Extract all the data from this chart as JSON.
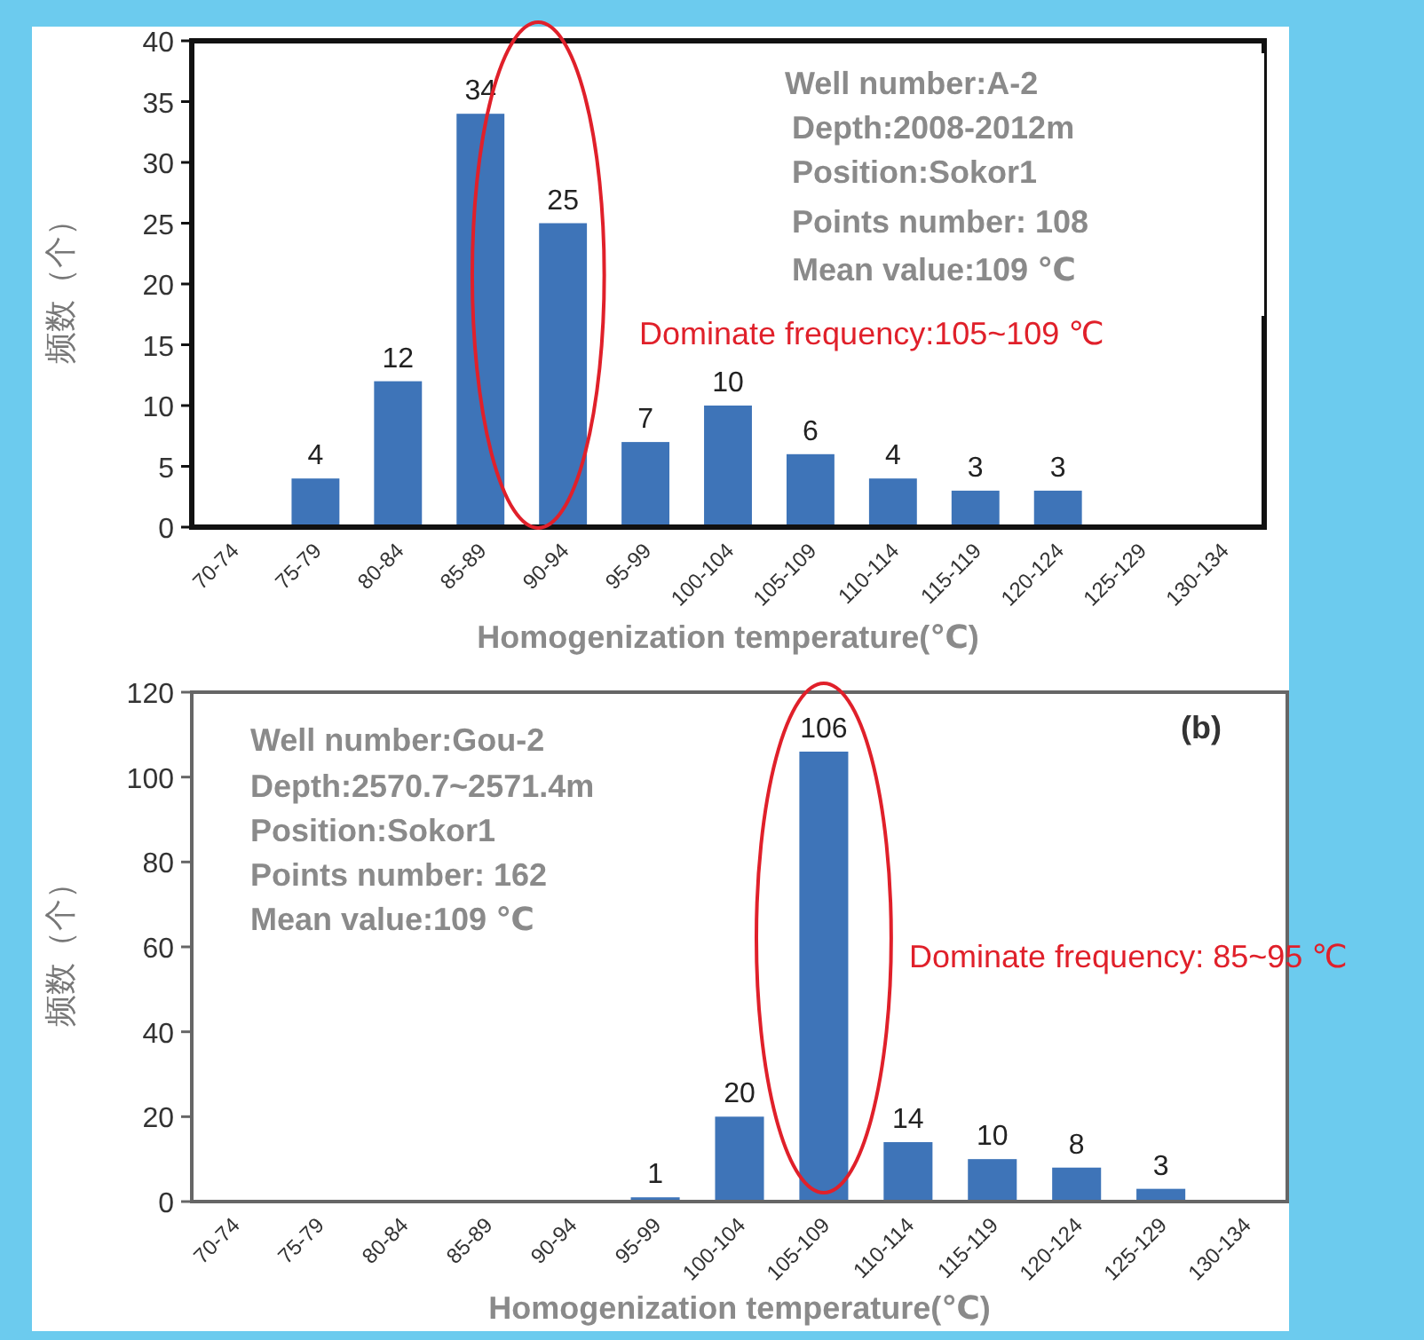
{
  "chart_data": [
    {
      "type": "bar",
      "categories": [
        "70-74",
        "75-79",
        "80-84",
        "85-89",
        "90-94",
        "95-99",
        "100-104",
        "105-109",
        "110-114",
        "115-119",
        "120-124",
        "125-129",
        "130-134"
      ],
      "values": [
        null,
        4,
        12,
        34,
        25,
        7,
        10,
        6,
        4,
        3,
        3,
        null,
        null
      ],
      "color": "#3e74b8",
      "data_labels": true,
      "xlabel": "Homogenization temperature(℃)",
      "ylabel": "频数（个）",
      "ylim": [
        0,
        40
      ],
      "yticks": [
        0,
        5,
        10,
        15,
        20,
        25,
        30,
        35,
        40
      ],
      "annotations": [
        "Well number:A-2",
        "Depth:2008-2012m",
        "Position:Sokor1",
        "Points number: 108",
        "Mean value:109 ℃",
        "Dominate frequency:105~109 ℃"
      ]
    },
    {
      "type": "bar",
      "categories": [
        "70-74",
        "75-79",
        "80-84",
        "85-89",
        "90-94",
        "95-99",
        "100-104",
        "105-109",
        "110-114",
        "115-119",
        "120-124",
        "125-129",
        "130-134"
      ],
      "values": [
        null,
        null,
        null,
        null,
        null,
        1,
        20,
        106,
        14,
        10,
        8,
        3,
        null
      ],
      "color": "#3e74b8",
      "data_labels": true,
      "xlabel": "Homogenization temperature(℃)",
      "ylabel": "频数（个）",
      "ylim": [
        0,
        120
      ],
      "yticks": [
        0,
        20,
        40,
        60,
        80,
        100,
        120
      ],
      "annotations": [
        "Well number:Gou-2",
        "Depth:2570.7~2571.4m",
        "Position:Sokor1",
        "Points number: 162",
        "Mean value:109 ℃",
        "Dominate frequency: 85~95 ℃",
        "(b)"
      ]
    }
  ]
}
